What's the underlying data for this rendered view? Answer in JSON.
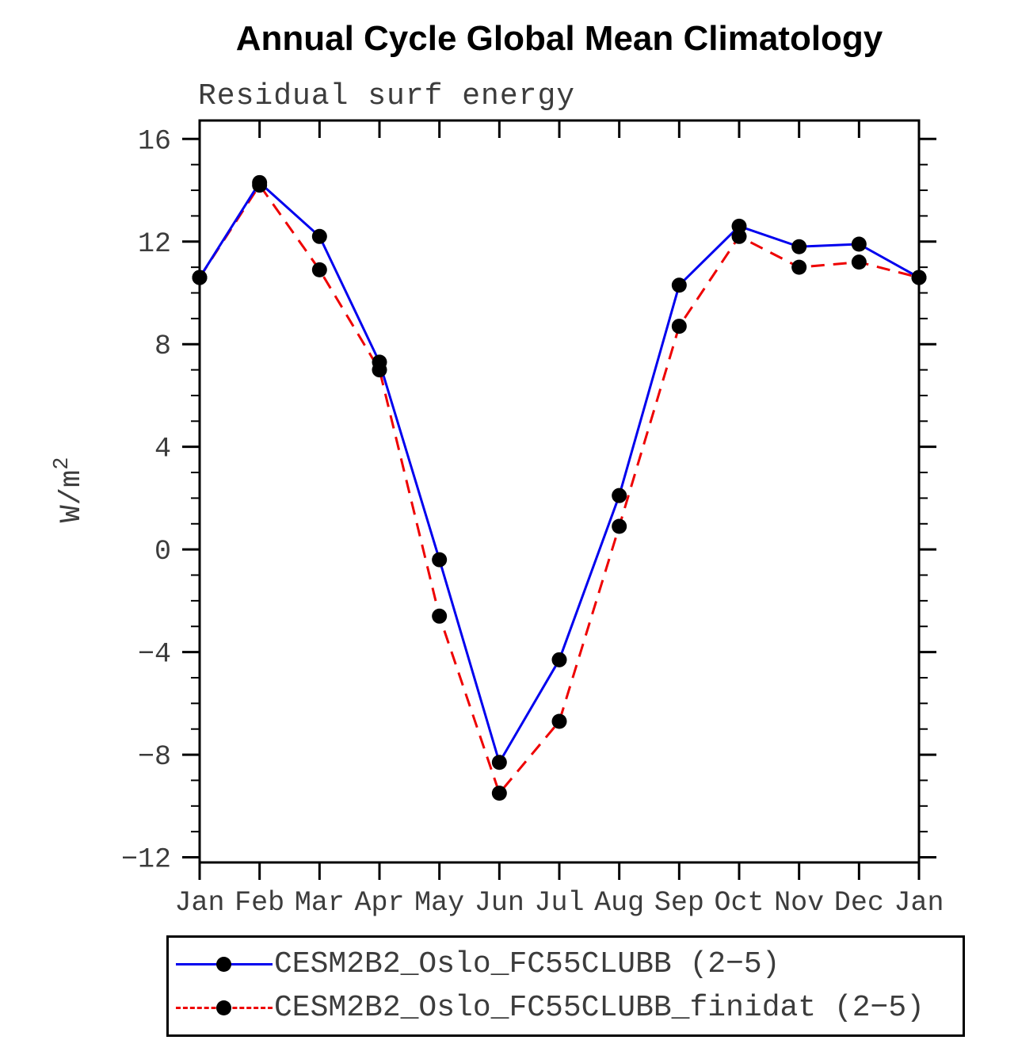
{
  "title": "Annual Cycle Global Mean Climatology",
  "subtitle": "Residual surf energy",
  "chart_data": {
    "type": "line",
    "categories": [
      "Jan",
      "Feb",
      "Mar",
      "Apr",
      "May",
      "Jun",
      "Jul",
      "Aug",
      "Sep",
      "Oct",
      "Nov",
      "Dec",
      "Jan"
    ],
    "series": [
      {
        "name": "CESM2B2_Oslo_FC55CLUBB (2−5)",
        "color": "#0000ee",
        "style": "solid",
        "marker": "filled-circle",
        "values": [
          10.6,
          14.3,
          12.2,
          7.3,
          -0.4,
          -8.3,
          -4.3,
          2.1,
          10.3,
          12.6,
          11.8,
          11.9,
          10.6
        ]
      },
      {
        "name": "CESM2B2_Oslo_FC55CLUBB_finidat (2−5)",
        "color": "#ee0000",
        "style": "dashed",
        "marker": "filled-circle",
        "values": [
          10.6,
          14.2,
          10.9,
          7.0,
          -2.6,
          -9.5,
          -6.7,
          0.9,
          8.7,
          12.2,
          11.0,
          11.2,
          10.6
        ]
      }
    ],
    "xlabel": "",
    "ylabel": "W/m",
    "ylabel_superscript": "2",
    "ylim": [
      -12,
      16
    ],
    "yticks": [
      -12,
      -8,
      -4,
      0,
      4,
      8,
      12,
      16
    ],
    "minor_tick_step": 1,
    "grid": false,
    "legend_position": "bottom",
    "marker_color": "#000000",
    "frame_color": "#000000"
  }
}
